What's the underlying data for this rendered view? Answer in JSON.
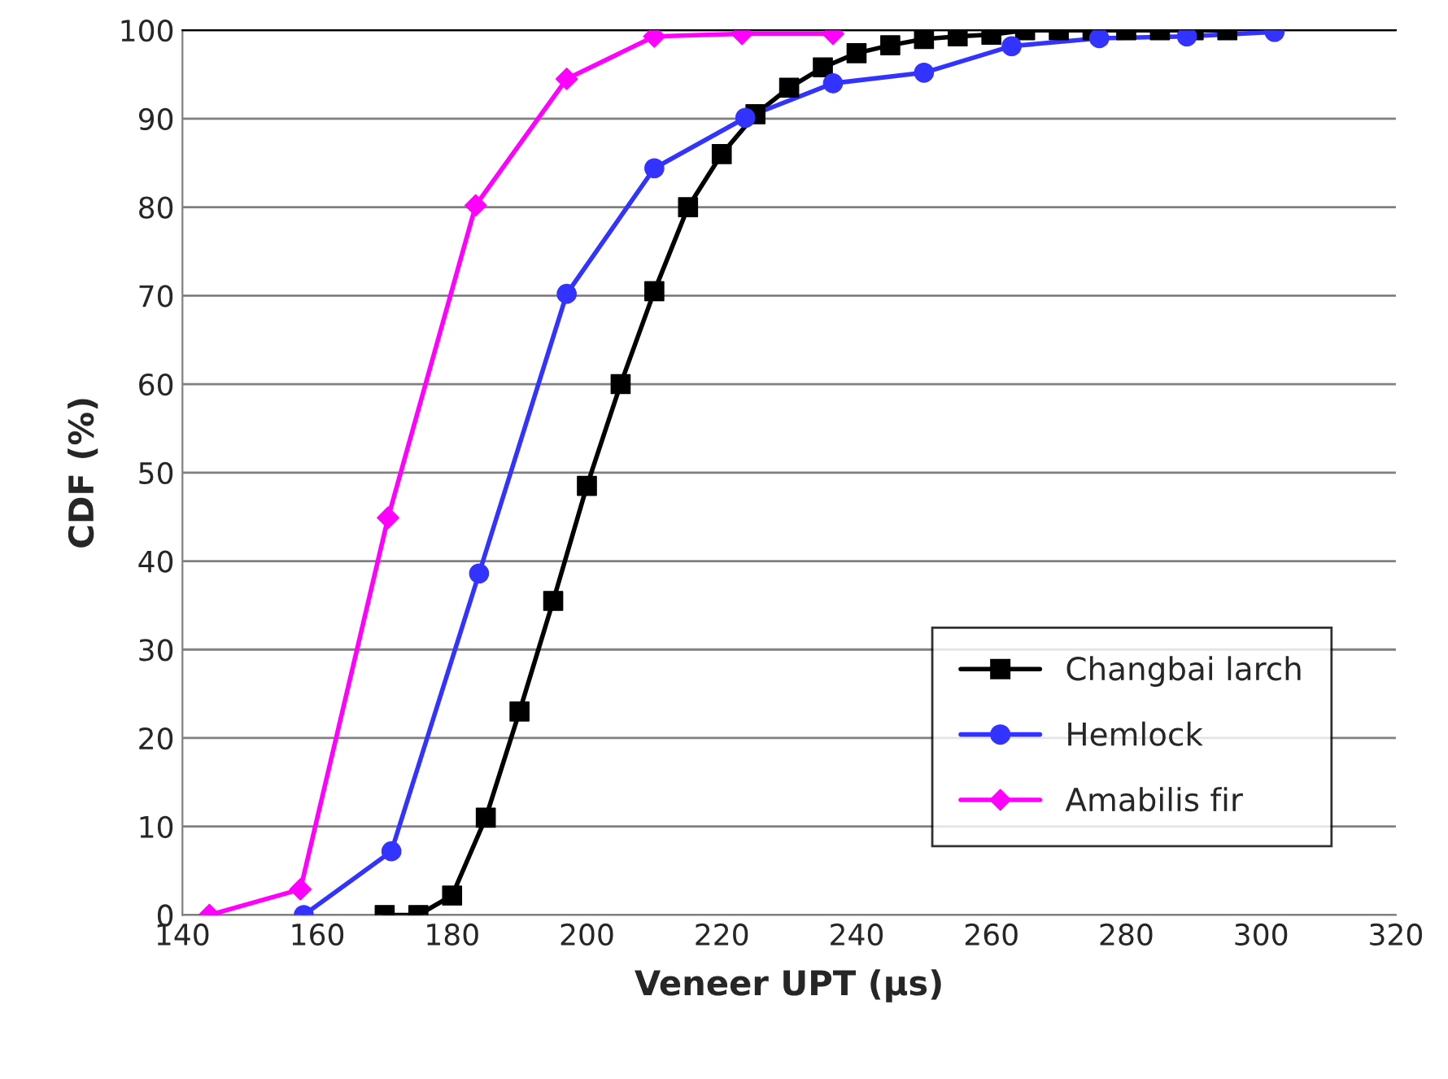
{
  "chart_data": {
    "type": "line",
    "xlabel": "Veneer UPT (µs)",
    "ylabel": "CDF (%)",
    "xlim": [
      140,
      320
    ],
    "xticks": [
      140,
      160,
      180,
      200,
      220,
      240,
      260,
      280,
      300,
      320
    ],
    "ylim": [
      0,
      100
    ],
    "yticks": [
      0,
      10,
      20,
      30,
      40,
      50,
      60,
      70,
      80,
      90,
      100
    ],
    "grid": "y",
    "legend": "bottom right",
    "line_style": "solid",
    "series": [
      {
        "name": "Changbai larch",
        "color": "#000000",
        "marker": "square",
        "x": [
          170,
          175,
          180,
          185,
          190,
          195,
          200,
          205,
          210,
          215,
          220,
          225,
          230,
          235,
          240,
          245,
          250,
          255,
          260,
          265,
          270,
          275,
          280,
          285,
          290,
          295
        ],
        "values": [
          0,
          0,
          2.2,
          11,
          23,
          35.5,
          48.5,
          60,
          70.5,
          80,
          86,
          90.5,
          93.5,
          95.8,
          97.4,
          98.3,
          99,
          99.3,
          99.5,
          100,
          100,
          100,
          100,
          100,
          100,
          100
        ]
      },
      {
        "name": "Hemlock",
        "color": "#3333ff",
        "marker": "circle",
        "x": [
          158,
          171,
          184,
          197,
          210,
          223.5,
          236.5,
          250,
          263,
          276,
          289,
          302
        ],
        "values": [
          0,
          7.2,
          38.6,
          70.2,
          84.4,
          90.1,
          94,
          95.2,
          98.2,
          99.1,
          99.3,
          99.8
        ]
      },
      {
        "name": "Amabilis fir",
        "color": "#ff00ff",
        "marker": "diamond",
        "x": [
          144,
          157.5,
          170.5,
          183.5,
          197,
          210,
          223,
          236.5
        ],
        "values": [
          0,
          2.9,
          44.9,
          80.2,
          94.5,
          99.3,
          99.6,
          99.6
        ]
      }
    ]
  }
}
